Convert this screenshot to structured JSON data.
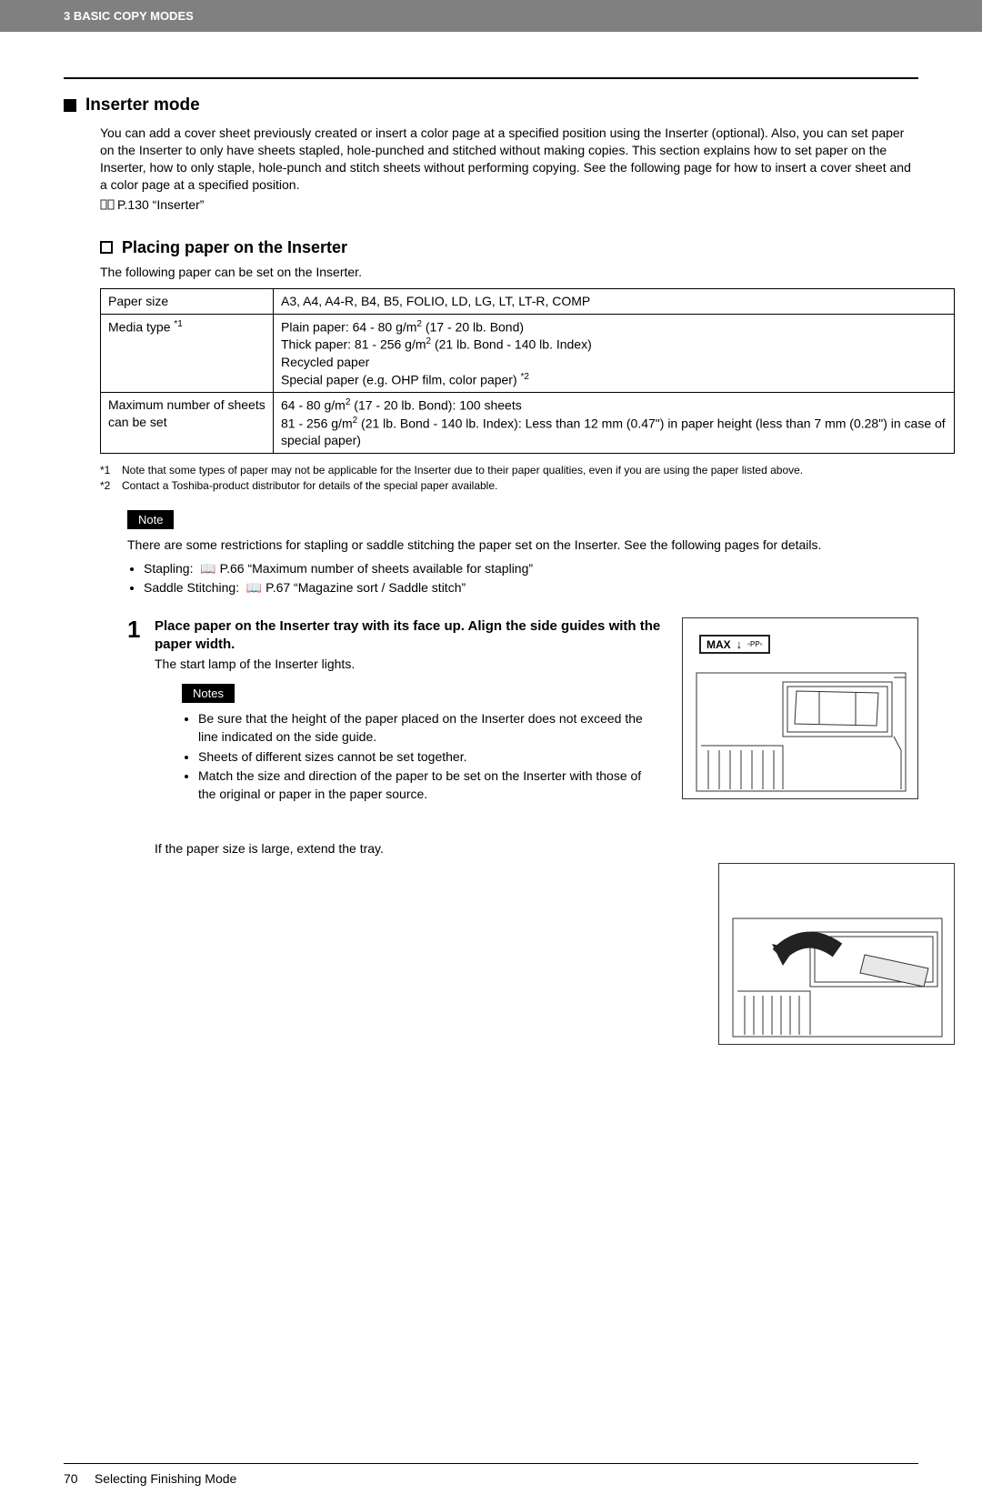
{
  "header": {
    "chapter": "3 BASIC COPY MODES"
  },
  "section": {
    "title": "Inserter mode",
    "intro": "You can add a cover sheet previously created or insert a color page at a specified position using the Inserter (optional). Also, you can set paper on the Inserter to only have sheets stapled, hole-punched and stitched without making copies. This section explains how to set paper on the Inserter, how to only staple, hole-punch and stitch sheets without performing copying. See the following page for how to insert a cover sheet and a color page at a specified position.",
    "ref": "P.130 “Inserter”"
  },
  "subsection": {
    "title": "Placing paper on the Inserter",
    "intro": "The following paper can be set on the Inserter."
  },
  "table": {
    "rows": [
      {
        "k": "Paper size",
        "v": "A3, A4, A4-R, B4, B5, FOLIO, LD, LG, LT, LT-R, COMP"
      },
      {
        "k": "Media type",
        "ksup": "*1",
        "v": "Plain paper: 64 - 80 g/m<span class=\"sup\">2</span> (17 - 20 lb. Bond)<br>Thick paper: 81 - 256 g/m<span class=\"sup\">2</span> (21 lb. Bond - 140 lb. Index)<br>Recycled paper<br>Special paper (e.g. OHP film, color paper) <span class=\"sup\">*2</span>"
      },
      {
        "k": "Maximum number of sheets can be set",
        "v": "64 - 80 g/m<span class=\"sup\">2</span> (17 - 20 lb. Bond): 100 sheets<br>81 - 256 g/m<span class=\"sup\">2</span> (21 lb. Bond - 140 lb. Index): Less than 12 mm (0.47\") in paper height (less than 7 mm (0.28\") in case of special paper)"
      }
    ]
  },
  "footnotes": [
    {
      "key": "*1",
      "text": "Note that some types of paper may not be applicable for the Inserter due to their paper qualities, even if you are using the paper listed above."
    },
    {
      "key": "*2",
      "text": "Contact a Toshiba-product distributor for details of the special paper available."
    }
  ],
  "note": {
    "label": "Note",
    "body": "There are some restrictions for stapling or saddle stitching the paper set on the Inserter. See the following pages for details.",
    "items": [
      "Stapling:  📖 P.66 “Maximum number of sheets available for stapling”",
      "Saddle Stitching:  📖 P.67 “Magazine sort / Saddle stitch”"
    ]
  },
  "step1": {
    "num": "1",
    "title": "Place paper on the Inserter tray with its face up. Align the side guides with the paper width.",
    "desc": "The start lamp of the Inserter lights.",
    "notes_label": "Notes",
    "notes": [
      "Be sure that the height of the paper placed on the Inserter does not exceed the line indicated on the side guide.",
      "Sheets of different sizes cannot be set together.",
      "Match the size and direction of the paper to be set on the Inserter with those of the original or paper in the paper source."
    ],
    "extend": "If the paper size is large, extend the tray."
  },
  "illus": {
    "max_label": "MAX",
    "paper_label": "▫PP▫"
  },
  "footer": {
    "page": "70",
    "title": "Selecting Finishing Mode"
  }
}
